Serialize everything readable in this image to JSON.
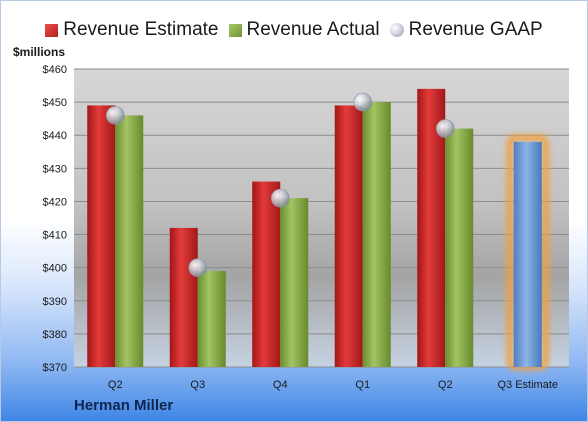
{
  "company": "Herman Miller",
  "chart_data": {
    "type": "bar",
    "ylabel": "$millions",
    "ylim": [
      370,
      460
    ],
    "y_ticks": [
      370,
      380,
      390,
      400,
      410,
      420,
      430,
      440,
      450,
      460
    ],
    "y_tick_labels": [
      "$370",
      "$380",
      "$390",
      "$400",
      "$410",
      "$420",
      "$430",
      "$440",
      "$450",
      "$460"
    ],
    "categories": [
      "Q2",
      "Q3",
      "Q4",
      "Q1",
      "Q2",
      "Q3 Estimate"
    ],
    "series": [
      {
        "name": "Revenue Estimate",
        "color": "#c62828",
        "values": [
          449,
          412,
          426,
          449,
          454,
          null
        ]
      },
      {
        "name": "Revenue Actual",
        "color": "#7fa33e",
        "values": [
          446,
          399,
          421,
          450,
          442,
          438
        ]
      },
      {
        "name": "Revenue GAAP",
        "color": "#b7bcc6",
        "marker": "sphere",
        "values": [
          446,
          400,
          421,
          450,
          442,
          null
        ]
      }
    ],
    "highlight": {
      "category_index": 5,
      "bar_color": "#6f9fd8",
      "glow_color": "#f0a040"
    },
    "legend_position": "top",
    "grid": true
  }
}
